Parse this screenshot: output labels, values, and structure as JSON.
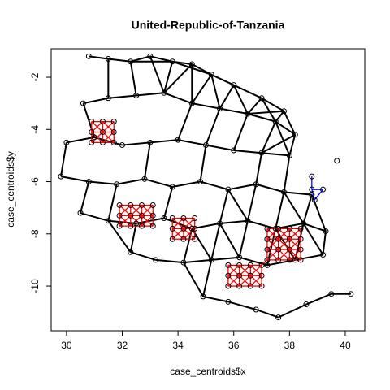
{
  "chart_data": {
    "type": "scatter",
    "title": "United-Republic-of-Tanzania",
    "x_label": "case_centroids$x",
    "y_label": "case_centroids$y",
    "xlim": [
      29.45,
      40.7
    ],
    "ylim": [
      -11.71,
      -0.91
    ],
    "xticks": [
      30,
      32,
      34,
      36,
      38,
      40
    ],
    "yticks": [
      -2,
      -4,
      -6,
      -8,
      -10
    ],
    "series": [
      {
        "color": "#000000",
        "x": [
          30.8,
          31.5,
          32.3,
          33.0,
          33.8,
          34.5,
          35.2,
          36.0,
          37.0,
          37.8,
          38.2,
          30.6,
          31.5,
          32.5,
          33.5,
          34.5,
          35.5,
          36.5,
          37.5,
          30.0,
          31.0,
          32.0,
          33.0,
          34.0,
          35.0,
          36.0,
          37.0,
          38.0,
          29.8,
          30.8,
          31.8,
          32.8,
          33.8,
          34.8,
          35.8,
          36.8,
          37.8,
          38.8,
          30.5,
          31.5,
          32.5,
          33.5,
          34.5,
          35.5,
          36.5,
          37.5,
          38.5,
          39.3,
          32.3,
          33.2,
          34.2,
          35.2,
          36.2,
          37.2,
          38.2,
          39.2,
          34.9,
          35.8,
          36.8,
          37.6,
          38.6,
          39.5,
          40.2,
          39.7
        ],
        "y": [
          -1.2,
          -1.3,
          -1.4,
          -1.2,
          -1.4,
          -1.5,
          -1.9,
          -2.3,
          -2.8,
          -3.3,
          -4.2,
          -3.0,
          -2.8,
          -2.7,
          -2.6,
          -3.0,
          -3.2,
          -3.4,
          -3.7,
          -4.5,
          -4.3,
          -4.6,
          -4.5,
          -4.4,
          -4.6,
          -4.8,
          -4.9,
          -5.0,
          -5.8,
          -6.0,
          -6.1,
          -5.9,
          -6.2,
          -6.0,
          -6.3,
          -6.1,
          -6.4,
          -6.5,
          -7.2,
          -7.5,
          -7.6,
          -7.4,
          -7.8,
          -7.6,
          -7.5,
          -7.8,
          -7.6,
          -7.9,
          -8.7,
          -9.0,
          -9.1,
          -9.0,
          -8.9,
          -9.2,
          -9.0,
          -8.8,
          -10.4,
          -10.6,
          -10.9,
          -11.2,
          -10.7,
          -10.3,
          -10.3,
          -5.2
        ]
      },
      {
        "color": "#ff0000",
        "x": [
          30.9,
          31.3,
          31.7,
          30.9,
          31.3,
          31.7,
          30.9,
          31.3,
          31.7,
          31.9,
          32.3,
          32.7,
          33.1,
          31.9,
          32.3,
          32.7,
          33.1,
          31.9,
          32.3,
          32.7,
          33.1,
          33.8,
          34.2,
          34.6,
          33.8,
          34.2,
          34.6,
          33.8,
          34.2,
          34.6,
          37.2,
          37.6,
          38.0,
          38.4,
          37.2,
          37.6,
          38.0,
          38.4,
          37.2,
          37.6,
          38.0,
          38.4,
          37.2,
          37.6,
          38.0,
          38.4,
          35.8,
          36.2,
          36.6,
          37.0,
          35.8,
          36.2,
          36.6,
          37.0,
          35.8,
          36.2,
          36.6,
          37.0
        ],
        "y": [
          -3.7,
          -3.7,
          -3.7,
          -4.1,
          -4.1,
          -4.1,
          -4.5,
          -4.5,
          -4.5,
          -6.9,
          -6.9,
          -6.9,
          -6.9,
          -7.3,
          -7.3,
          -7.3,
          -7.3,
          -7.7,
          -7.7,
          -7.7,
          -7.7,
          -7.4,
          -7.4,
          -7.4,
          -7.8,
          -7.8,
          -7.8,
          -8.2,
          -8.2,
          -8.2,
          -7.8,
          -7.8,
          -7.8,
          -7.8,
          -8.2,
          -8.2,
          -8.2,
          -8.2,
          -8.6,
          -8.6,
          -8.6,
          -8.6,
          -9.0,
          -9.0,
          -9.0,
          -9.0,
          -9.2,
          -9.2,
          -9.2,
          -9.2,
          -9.6,
          -9.6,
          -9.6,
          -9.6,
          -10.0,
          -10.0,
          -10.0,
          -10.0
        ]
      },
      {
        "color": "#0000ff",
        "x": [
          38.8,
          39.2,
          38.9,
          38.8
        ],
        "y": [
          -5.8,
          -6.3,
          -6.7,
          -6.3
        ]
      }
    ]
  }
}
